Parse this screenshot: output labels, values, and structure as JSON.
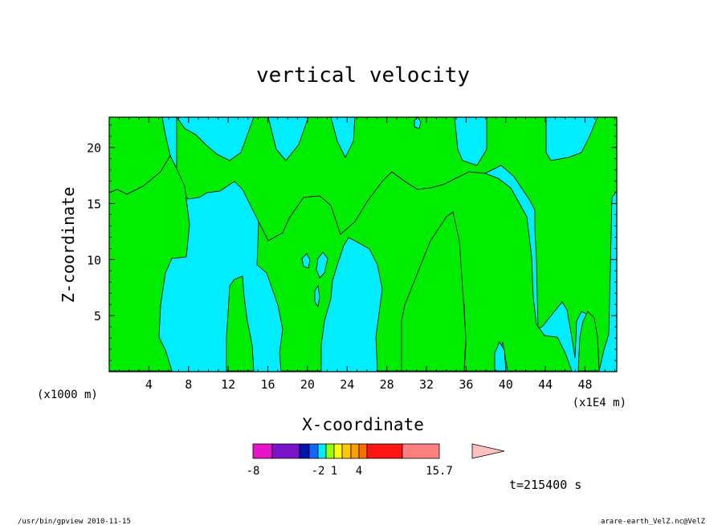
{
  "chart_data": {
    "type": "heatmap",
    "title": "vertical velocity",
    "xlabel": "X-coordinate",
    "ylabel": "Z-coordinate",
    "x_unit_left": "(x1000 m)",
    "x_unit_right": "(x1E4 m)",
    "x_ticks": [
      4,
      8,
      12,
      16,
      20,
      24,
      28,
      32,
      36,
      40,
      44,
      48
    ],
    "y_ticks": [
      5,
      10,
      15,
      20
    ],
    "xlim": [
      0,
      51.2
    ],
    "ylim": [
      0,
      22.7
    ],
    "colors": {
      "cyan": "#00ecff",
      "green": "#00ec00"
    },
    "colorbar": {
      "colors": [
        "#e614c8",
        "#7a14c8",
        "#0014aa",
        "#1464ff",
        "#00ecff",
        "#96ff00",
        "#ffff00",
        "#ffc800",
        "#ffa000",
        "#ff6e00",
        "#ff1414",
        "#ff8080",
        "#ffc0c0"
      ],
      "boundaries": [
        -8,
        -6,
        -4,
        -3,
        -2,
        -1,
        1,
        2,
        3,
        4,
        8,
        12,
        15.7
      ],
      "tick_labels": [
        "-8",
        "-2",
        "1",
        "4",
        "15.7"
      ],
      "tick_values": [
        -8,
        -2,
        1,
        4,
        15.7
      ]
    },
    "time_label": "t=215400 s"
  },
  "footer": {
    "left": "/usr/bin/gpview  2010-11-15",
    "right": "arare-earth_VelZ.nc@VelZ"
  }
}
